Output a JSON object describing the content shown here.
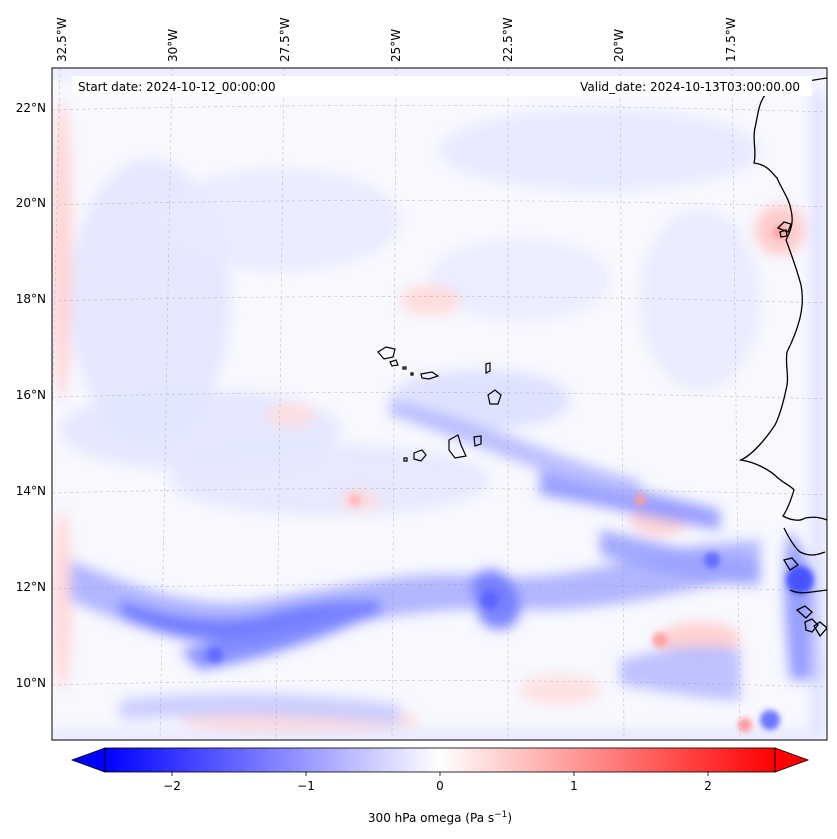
{
  "header": {
    "start_date": "Start date: 2024-10-12_00:00:00",
    "valid_date": "Valid_date: 2024-10-13T03:00:00.00"
  },
  "map": {
    "projection": "lambert-conformal",
    "lon_labels": [
      "32.5°W",
      "30°W",
      "27.5°W",
      "25°W",
      "22.5°W",
      "20°W",
      "17.5°W"
    ],
    "lat_labels": [
      "22°N",
      "20°N",
      "18°N",
      "16°N",
      "14°N",
      "12°N",
      "10°N"
    ],
    "features": [
      "cape-verde-islands",
      "west-africa-coastline"
    ],
    "field": "omega at 300 hPa",
    "pattern": "mostly near-zero with bands of negative (blue) values near 10–14°N and along the domain edges"
  },
  "colorbar": {
    "label": "300 hPa omega (Pa s",
    "label_sup": "−1",
    "label_tail": ")",
    "ticks": [
      "−2",
      "−1",
      "0",
      "1",
      "2"
    ],
    "tick_values": [
      -2,
      -1,
      0,
      1,
      2
    ],
    "range": [
      -2.5,
      2.5
    ],
    "colormap": "bwr",
    "colors": {
      "min": "#0000ff",
      "mid": "#ffffff",
      "max": "#ff0000"
    },
    "extend": "both"
  }
}
